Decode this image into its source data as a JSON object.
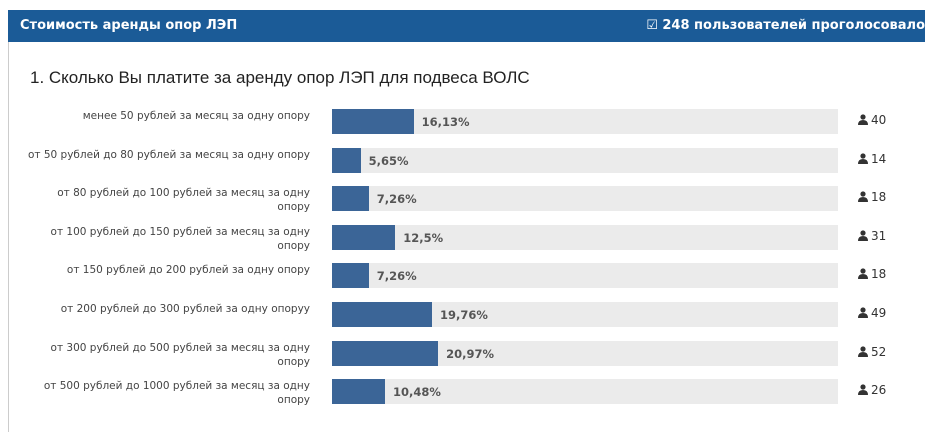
{
  "chart_data": {
    "type": "hbar",
    "title": "Стоимость аренды опор ЛЭП",
    "votes": "248 пользователей проголосовало",
    "question": "1. Сколько Вы платите за аренду опор ЛЭП для подвеса ВОЛС",
    "categories": [
      "менее 50 рублей за месяц за одну опору",
      "от 50 рублей до 80 рублей за месяц за одну опору",
      "от 80 рублей до 100 рублей за месяц за одну опору",
      "от 100 рублей до 150 рублей за месяц за одну опору",
      "от 150 рублей до 200 рублей за одну опору",
      "от 200 рублей до 300 рублей за одну опоруу",
      "от 300 рублей до 500 рублей за месяц за одну опору",
      "от 500 рублей до 1000 рублей за месяц за одну опору"
    ],
    "values": [
      16.13,
      5.65,
      7.26,
      12.5,
      7.26,
      19.76,
      20.97,
      10.48
    ],
    "value_labels": [
      "16,13%",
      "5,65%",
      "7,26%",
      "12,5%",
      "7,26%",
      "19,76%",
      "20,97%",
      "10,48%"
    ],
    "counts": [
      40,
      14,
      18,
      31,
      18,
      49,
      52,
      26
    ],
    "color": "#3b6597",
    "xlim": [
      0,
      100
    ]
  }
}
